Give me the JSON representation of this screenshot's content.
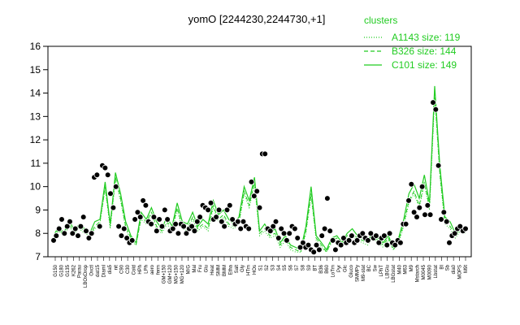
{
  "chart_data": {
    "type": "line",
    "title": "yomO [2244230,2244730,+1]",
    "xlabel": "",
    "ylabel": "",
    "ylim": [
      7,
      16
    ],
    "yticks": [
      7,
      8,
      9,
      10,
      11,
      12,
      13,
      14,
      15,
      16
    ],
    "grid": false,
    "legend": {
      "placement": "top-right",
      "title": "clusters",
      "entries": [
        {
          "label": "A1143 size: 119",
          "style": "dotted"
        },
        {
          "label": "B326 size: 144",
          "style": "dashed"
        },
        {
          "label": "C101 size: 149",
          "style": "solid"
        }
      ]
    },
    "x_labels": [
      "G150",
      "G180",
      "G135",
      "K262",
      "Parau",
      "LBOxDrop",
      "Oxctl",
      "dat15",
      "Diaml",
      "dia5",
      "nit",
      "C90",
      "C30",
      "Cold",
      "HPh",
      "LPh",
      "aero",
      "ferm",
      "GM+150",
      "GM+120",
      "MG+150",
      "MG+120",
      "M/G",
      "Mal",
      "Fru",
      "Glu",
      "Heat",
      "SMM",
      "BMM",
      "Etha",
      "Salt",
      "Gly",
      "HTm",
      "HOs",
      "S1",
      "S2",
      "S3",
      "S4",
      "S5",
      "S6",
      "S7",
      "S8",
      "S9",
      "BT",
      "B36",
      "B60",
      "LoTm",
      "Pyr",
      "Glc",
      "Gluco",
      "SMMPy",
      "M9-stat",
      "BC",
      "Sw",
      "LPhT",
      "LBGlu",
      "LBGstat",
      "M40",
      "M63",
      "M9",
      "Mstarch",
      "M0045",
      "M0090",
      "Lbstat",
      "BI",
      "Sb",
      "dia0",
      "MOPS",
      "M9t"
    ],
    "x_label_stride": 3,
    "points": [
      [
        1,
        7.7
      ],
      [
        2,
        7.9
      ],
      [
        3,
        8.2
      ],
      [
        4,
        8.6
      ],
      [
        5,
        8.0
      ],
      [
        6,
        8.3
      ],
      [
        7,
        8.5
      ],
      [
        8,
        8.0
      ],
      [
        9,
        8.2
      ],
      [
        10,
        7.9
      ],
      [
        11,
        8.3
      ],
      [
        12,
        8.7
      ],
      [
        13,
        8.1
      ],
      [
        14,
        7.8
      ],
      [
        15,
        8.0
      ],
      [
        16,
        10.4
      ],
      [
        17,
        10.5
      ],
      [
        18,
        8.3
      ],
      [
        19,
        10.9
      ],
      [
        20,
        10.8
      ],
      [
        21,
        10.5
      ],
      [
        22,
        9.7
      ],
      [
        23,
        9.1
      ],
      [
        24,
        10.0
      ],
      [
        25,
        8.3
      ],
      [
        26,
        7.9
      ],
      [
        27,
        8.2
      ],
      [
        28,
        7.8
      ],
      [
        29,
        7.6
      ],
      [
        30,
        7.7
      ],
      [
        31,
        8.6
      ],
      [
        32,
        8.9
      ],
      [
        33,
        8.7
      ],
      [
        34,
        9.4
      ],
      [
        35,
        9.2
      ],
      [
        36,
        8.5
      ],
      [
        37,
        8.4
      ],
      [
        38,
        8.7
      ],
      [
        39,
        8.1
      ],
      [
        40,
        8.6
      ],
      [
        41,
        8.3
      ],
      [
        42,
        9.0
      ],
      [
        43,
        8.6
      ],
      [
        44,
        8.1
      ],
      [
        45,
        8.2
      ],
      [
        46,
        8.4
      ],
      [
        47,
        8.0
      ],
      [
        48,
        8.4
      ],
      [
        49,
        8.3
      ],
      [
        50,
        8.0
      ],
      [
        51,
        8.2
      ],
      [
        52,
        8.3
      ],
      [
        53,
        8.1
      ],
      [
        54,
        8.5
      ],
      [
        55,
        8.7
      ],
      [
        56,
        9.2
      ],
      [
        57,
        9.1
      ],
      [
        58,
        9.0
      ],
      [
        59,
        9.3
      ],
      [
        60,
        8.6
      ],
      [
        61,
        8.7
      ],
      [
        62,
        9.0
      ],
      [
        63,
        8.5
      ],
      [
        64,
        8.3
      ],
      [
        65,
        9.0
      ],
      [
        66,
        9.2
      ],
      [
        67,
        8.6
      ],
      [
        68,
        8.4
      ],
      [
        69,
        8.5
      ],
      [
        70,
        8.2
      ],
      [
        71,
        8.5
      ],
      [
        72,
        8.3
      ],
      [
        73,
        8.2
      ],
      [
        74,
        10.2
      ],
      [
        75,
        9.6
      ],
      [
        76,
        9.8
      ],
      [
        77,
        9.1
      ],
      [
        78,
        11.4
      ],
      [
        79,
        11.4
      ],
      [
        80,
        8.2
      ],
      [
        81,
        8.1
      ],
      [
        82,
        8.3
      ],
      [
        83,
        8.5
      ],
      [
        84,
        7.8
      ],
      [
        85,
        8.2
      ],
      [
        86,
        8.0
      ],
      [
        87,
        7.7
      ],
      [
        88,
        8.0
      ],
      [
        89,
        8.3
      ],
      [
        90,
        8.2
      ],
      [
        91,
        7.8
      ],
      [
        92,
        7.4
      ],
      [
        93,
        7.6
      ],
      [
        94,
        7.4
      ],
      [
        95,
        7.5
      ],
      [
        96,
        7.3
      ],
      [
        97,
        7.2
      ],
      [
        98,
        7.5
      ],
      [
        99,
        7.3
      ],
      [
        100,
        7.9
      ],
      [
        101,
        8.2
      ],
      [
        102,
        9.5
      ],
      [
        103,
        8.1
      ],
      [
        104,
        7.7
      ],
      [
        105,
        7.3
      ],
      [
        106,
        7.6
      ],
      [
        107,
        7.5
      ],
      [
        108,
        7.8
      ],
      [
        109,
        7.6
      ],
      [
        110,
        7.7
      ],
      [
        111,
        7.9
      ],
      [
        112,
        7.6
      ],
      [
        113,
        7.7
      ],
      [
        114,
        7.9
      ],
      [
        115,
        8.0
      ],
      [
        116,
        7.8
      ],
      [
        117,
        7.7
      ],
      [
        118,
        8.0
      ],
      [
        119,
        7.8
      ],
      [
        120,
        7.9
      ],
      [
        121,
        7.6
      ],
      [
        122,
        7.8
      ],
      [
        123,
        7.9
      ],
      [
        124,
        7.5
      ],
      [
        125,
        8.0
      ],
      [
        126,
        7.6
      ],
      [
        127,
        7.5
      ],
      [
        128,
        7.7
      ],
      [
        129,
        7.6
      ],
      [
        130,
        8.4
      ],
      [
        131,
        8.4
      ],
      [
        132,
        9.4
      ],
      [
        133,
        10.1
      ],
      [
        134,
        8.9
      ],
      [
        135,
        8.7
      ],
      [
        136,
        9.1
      ],
      [
        137,
        10.0
      ],
      [
        138,
        8.8
      ],
      [
        139,
        9.2
      ],
      [
        140,
        8.8
      ],
      [
        141,
        13.6
      ],
      [
        142,
        13.3
      ],
      [
        143,
        10.9
      ],
      [
        144,
        8.6
      ],
      [
        145,
        8.9
      ],
      [
        146,
        8.5
      ],
      [
        147,
        7.6
      ],
      [
        148,
        7.9
      ],
      [
        149,
        8.0
      ],
      [
        150,
        8.2
      ],
      [
        151,
        8.3
      ],
      [
        152,
        8.1
      ],
      [
        153,
        8.2
      ]
    ],
    "series": [
      {
        "style": "solid",
        "values": [
          7.9,
          8.3,
          8.0,
          8.6,
          8.1,
          8.4,
          8.2,
          8.0,
          8.5,
          8.6,
          10.2,
          8.4,
          10.6,
          9.7,
          8.5,
          7.9,
          7.6,
          8.9,
          8.6,
          9.1,
          8.5,
          8.2,
          8.7,
          8.3,
          9.3,
          8.5,
          8.4,
          8.9,
          8.3,
          8.6,
          8.4,
          9.4,
          8.8,
          9.0,
          8.6,
          8.4,
          8.7,
          10.0,
          9.4,
          10.4,
          8.1,
          8.4,
          8.0,
          8.2,
          7.6,
          7.9,
          7.5,
          7.4,
          7.3,
          8.3,
          10.0,
          7.9,
          7.6,
          7.3,
          7.8,
          7.9,
          7.6,
          8.0,
          8.2,
          7.9,
          7.8,
          7.7,
          8.0,
          7.8,
          7.6,
          7.9,
          7.4,
          7.8,
          8.6,
          9.7,
          10.1,
          9.5,
          10.5,
          9.3,
          14.3,
          10.9,
          8.7,
          8.5,
          8.0,
          8.3,
          8.2
        ]
      },
      {
        "style": "dashed",
        "values": [
          7.8,
          8.2,
          7.9,
          8.4,
          8.0,
          8.3,
          8.1,
          7.9,
          8.3,
          8.5,
          10.0,
          8.3,
          10.4,
          9.5,
          8.3,
          7.8,
          7.5,
          8.7,
          8.5,
          8.9,
          8.3,
          8.1,
          8.5,
          8.2,
          9.1,
          8.3,
          8.2,
          8.7,
          8.2,
          8.4,
          8.2,
          9.2,
          8.6,
          8.8,
          8.4,
          8.3,
          8.5,
          9.8,
          9.2,
          10.2,
          8.0,
          8.2,
          7.9,
          8.0,
          7.5,
          7.8,
          7.4,
          7.3,
          7.2,
          8.1,
          9.7,
          7.8,
          7.5,
          7.2,
          7.7,
          7.8,
          7.5,
          7.9,
          8.0,
          7.8,
          7.7,
          7.6,
          7.9,
          7.7,
          7.5,
          7.8,
          7.3,
          7.7,
          8.4,
          9.4,
          9.8,
          9.2,
          10.2,
          9.1,
          14.0,
          10.6,
          8.5,
          8.3,
          7.9,
          8.2,
          8.1
        ]
      },
      {
        "style": "dotted",
        "values": [
          7.8,
          8.1,
          7.9,
          8.3,
          8.0,
          8.2,
          8.0,
          7.9,
          8.2,
          8.4,
          9.9,
          8.2,
          10.3,
          9.4,
          8.2,
          7.7,
          7.5,
          8.6,
          8.4,
          8.8,
          8.2,
          8.0,
          8.4,
          8.1,
          9.0,
          8.2,
          8.1,
          8.6,
          8.1,
          8.3,
          8.1,
          9.1,
          8.5,
          8.7,
          8.3,
          8.2,
          8.4,
          9.7,
          9.1,
          10.1,
          7.9,
          8.1,
          7.8,
          7.9,
          7.4,
          7.7,
          7.3,
          7.2,
          7.2,
          8.0,
          9.6,
          7.7,
          7.4,
          7.2,
          7.6,
          7.7,
          7.4,
          7.8,
          7.9,
          7.7,
          7.6,
          7.5,
          7.8,
          7.6,
          7.4,
          7.7,
          7.3,
          7.6,
          8.3,
          9.3,
          9.7,
          9.1,
          10.1,
          9.0,
          13.8,
          10.5,
          8.4,
          8.2,
          7.8,
          8.1,
          8.0
        ]
      }
    ],
    "colors": {
      "points_fill": "#000000",
      "points_edge": "#000000",
      "line": "#22cc22",
      "legend": "#22cc22",
      "axis": "#000000"
    }
  }
}
